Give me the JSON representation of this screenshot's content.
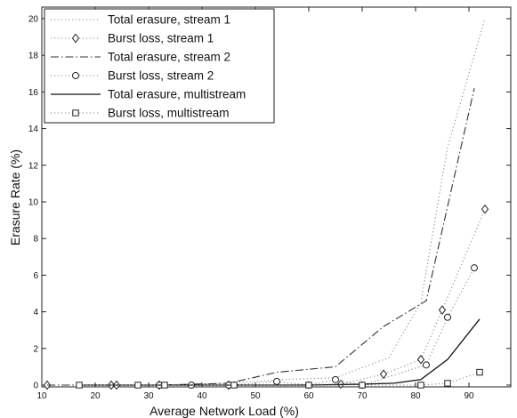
{
  "chart_data": {
    "type": "line",
    "xlabel": "Average Network Load (%)",
    "ylabel": "Erasure Rate (%)",
    "xlim": [
      10,
      95
    ],
    "ylim": [
      0,
      21
    ],
    "xticks": [
      10,
      20,
      30,
      40,
      50,
      60,
      70,
      80,
      90
    ],
    "yticks": [
      0,
      2,
      4,
      6,
      8,
      10,
      12,
      14,
      16,
      18,
      20
    ],
    "grid": false,
    "legend_position": "top-left",
    "series": [
      {
        "name": "Total erasure, stream 1",
        "style": "dotted",
        "marker": "none",
        "x": [
          11,
          23,
          32,
          45,
          55,
          65,
          75,
          81,
          86,
          93
        ],
        "y": [
          0.0,
          0.0,
          0.0,
          0.1,
          0.3,
          0.4,
          1.5,
          4.5,
          13.0,
          20.0
        ]
      },
      {
        "name": "Burst loss, stream 1",
        "style": "dotted",
        "marker": "diamond",
        "x": [
          11,
          23,
          24,
          32,
          45,
          66,
          74,
          81,
          85,
          93
        ],
        "y": [
          0.0,
          0.0,
          0.0,
          0.0,
          0.0,
          0.05,
          0.6,
          1.4,
          4.1,
          9.6
        ]
      },
      {
        "name": "Total erasure, stream 2",
        "style": "dashdot",
        "marker": "none",
        "x": [
          11,
          23,
          32,
          45,
          54,
          65,
          74,
          82,
          91
        ],
        "y": [
          0.0,
          0.0,
          0.0,
          0.1,
          0.7,
          1.0,
          3.2,
          4.6,
          16.2
        ]
      },
      {
        "name": "Burst loss, stream 2",
        "style": "dotted",
        "marker": "circle",
        "x": [
          32,
          38,
          45,
          54,
          60,
          65,
          70,
          82,
          86,
          91
        ],
        "y": [
          0.0,
          0.0,
          0.0,
          0.2,
          0.0,
          0.3,
          0.0,
          1.1,
          3.7,
          6.4
        ]
      },
      {
        "name": "Total erasure, multistream",
        "style": "solid",
        "marker": "none",
        "x": [
          17,
          30,
          40,
          50,
          60,
          70,
          76,
          81,
          86,
          92
        ],
        "y": [
          0.0,
          0.0,
          0.0,
          0.0,
          0.0,
          0.05,
          0.1,
          0.3,
          1.4,
          3.6
        ]
      },
      {
        "name": "Burst loss, multistream",
        "style": "dotted",
        "marker": "square",
        "x": [
          17,
          28,
          33,
          46,
          60,
          70,
          81,
          86,
          92
        ],
        "y": [
          0.0,
          0.0,
          0.0,
          0.0,
          0.0,
          0.0,
          0.0,
          0.1,
          0.7
        ]
      }
    ]
  }
}
